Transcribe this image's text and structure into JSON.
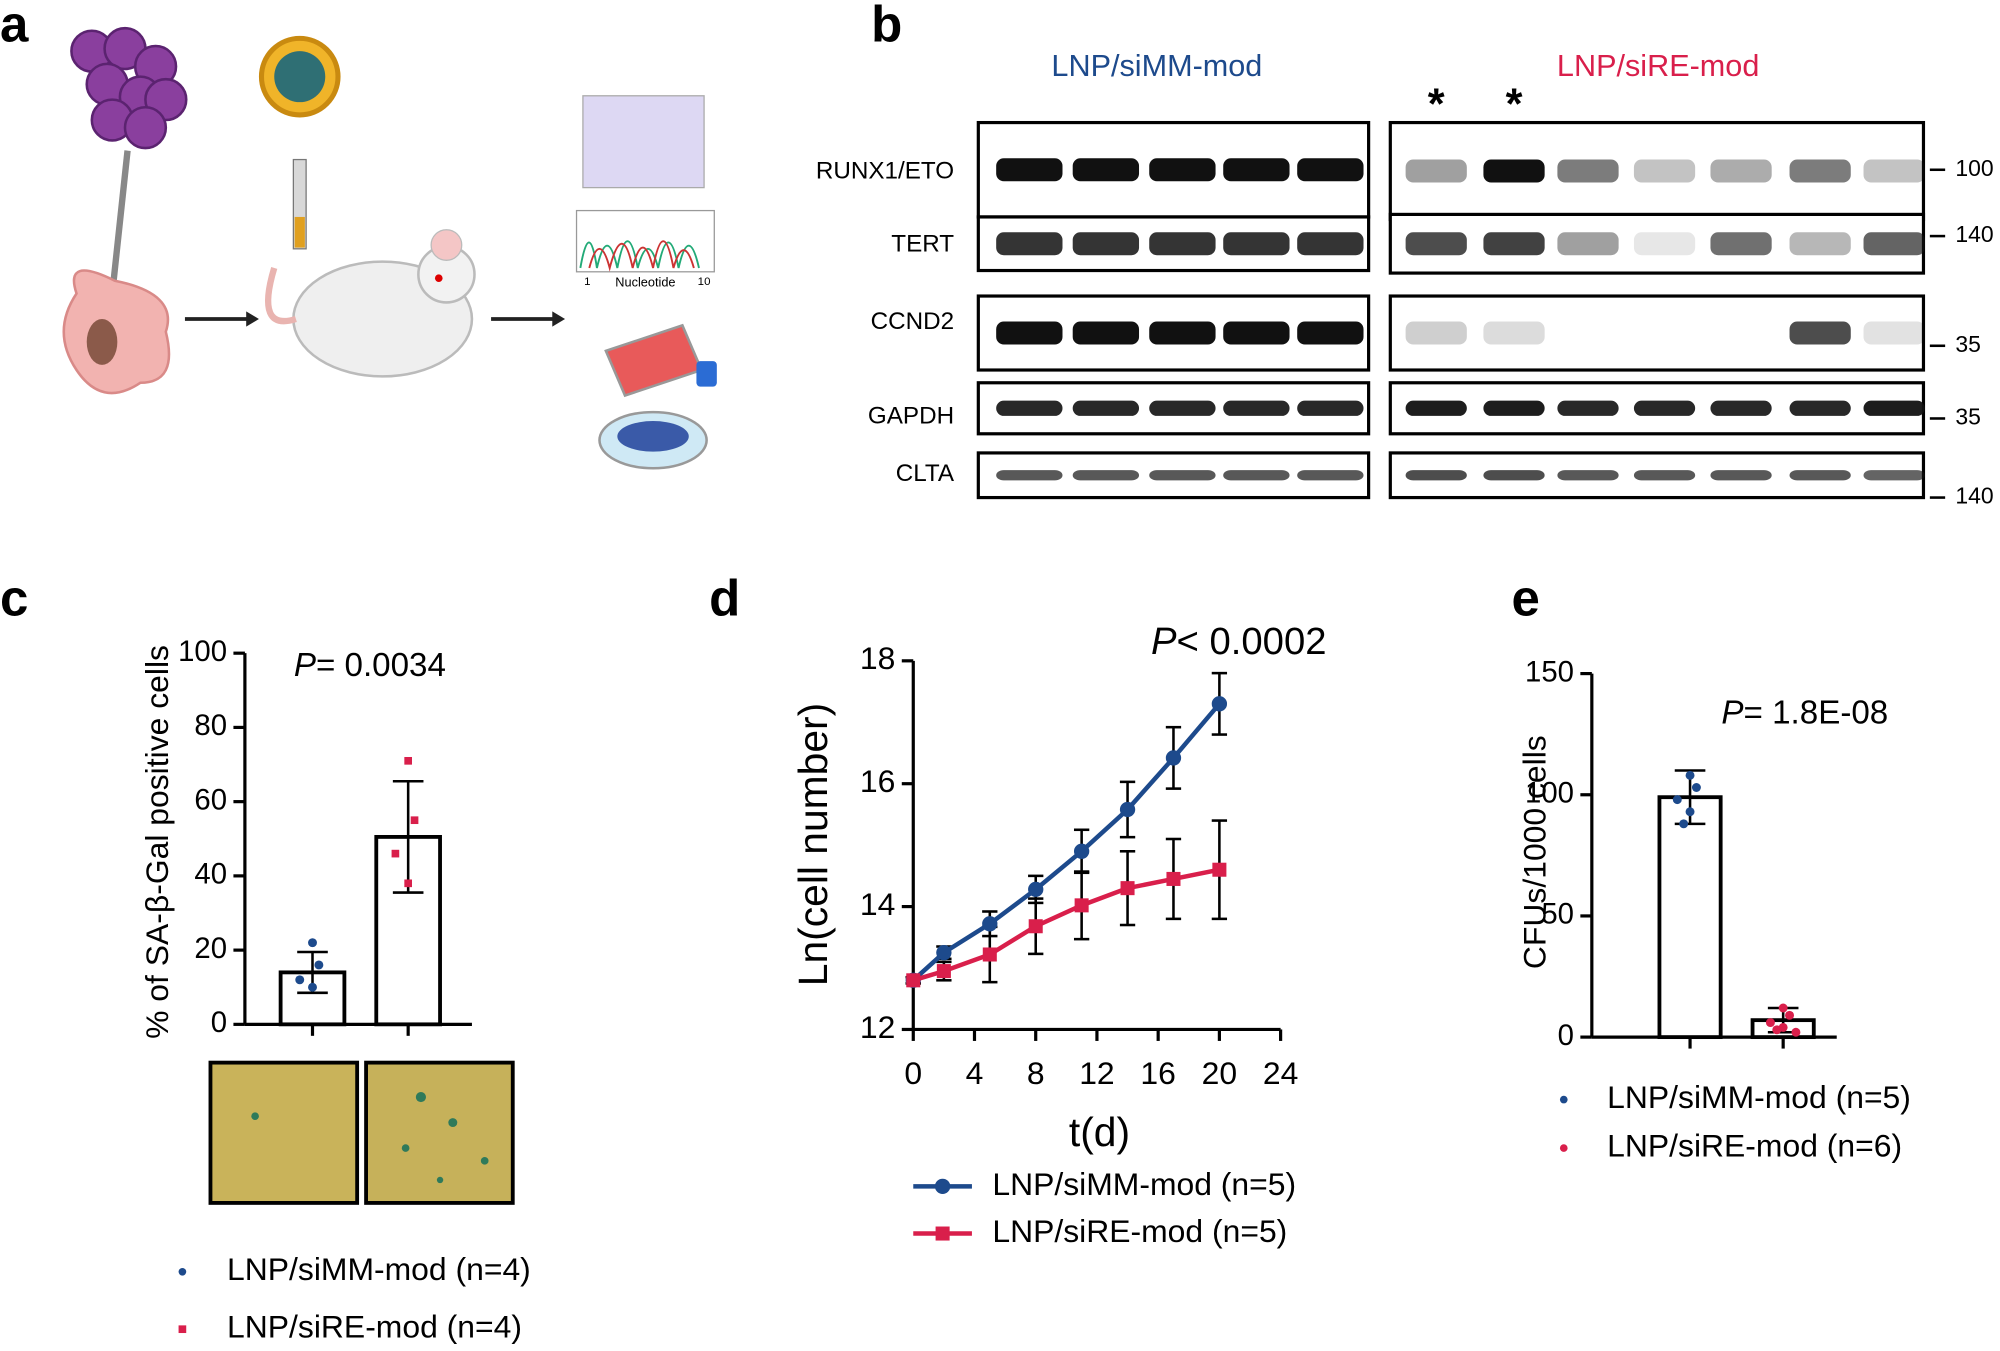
{
  "panels": [
    "a",
    "b",
    "c",
    "d",
    "e"
  ],
  "illustration": {
    "chromatogram_axis_label": "Nucleotide",
    "chromatogram_start": "1",
    "chromatogram_end": "10"
  },
  "western_blot": {
    "groups": [
      {
        "name": "LNP/siMM-mod",
        "color": "#1d4a8c"
      },
      {
        "name": "LNP/siRE-mod",
        "color": "#d91f4b"
      }
    ],
    "markers": [
      "*",
      "*"
    ],
    "proteins": [
      "RUNX1/ETO",
      "TERT",
      "CCND2",
      "GAPDH",
      "CLTA"
    ],
    "molecular_weights": [
      100,
      140,
      35,
      35,
      140
    ]
  },
  "chart_data": [
    {
      "type": "bar",
      "annotation": {
        "italic": "P",
        "text": "= 0.0034"
      },
      "ylabel": "% of SA-β-Gal positive cells",
      "ylim": [
        0,
        100
      ],
      "yticks": [
        0,
        20,
        40,
        60,
        80,
        100
      ],
      "series": [
        {
          "name": "LNP/siMM-mod (n=4)",
          "color": "#1d4a8c",
          "marker": "circle",
          "values": [
            14
          ],
          "errors": [
            5.5
          ],
          "points": [
            22,
            16,
            12,
            10
          ]
        },
        {
          "name": "LNP/siRE-mod (n=4)",
          "color": "#d91f4b",
          "marker": "square",
          "values": [
            50.5
          ],
          "errors": [
            15
          ],
          "points": [
            71,
            55,
            46,
            38
          ]
        }
      ]
    },
    {
      "type": "line",
      "annotation": {
        "italic": "P",
        "text": "< 0.0002"
      },
      "xlabel": "t(d)",
      "ylabel": "Ln(cell number)",
      "x": [
        0,
        2,
        5,
        8,
        11,
        14,
        17,
        20
      ],
      "xlim": [
        0,
        24
      ],
      "xticks": [
        0,
        4,
        8,
        12,
        16,
        20,
        24
      ],
      "ylim": [
        12,
        18
      ],
      "yticks": [
        12,
        14,
        16,
        18
      ],
      "series": [
        {
          "name": "LNP/siMM-mod (n=5)",
          "color": "#1d4a8c",
          "marker": "circle",
          "values": [
            12.8,
            13.25,
            13.72,
            14.28,
            14.9,
            15.58,
            16.42,
            17.3
          ],
          "errors": [
            0.05,
            0.1,
            0.2,
            0.22,
            0.35,
            0.45,
            0.5,
            0.5
          ]
        },
        {
          "name": "LNP/siRE-mod (n=5)",
          "color": "#d91f4b",
          "marker": "square",
          "values": [
            12.8,
            12.95,
            13.22,
            13.68,
            14.02,
            14.3,
            14.45,
            14.6
          ],
          "errors": [
            0.05,
            0.15,
            0.45,
            0.45,
            0.55,
            0.6,
            0.65,
            0.8
          ]
        }
      ]
    },
    {
      "type": "bar",
      "annotation": {
        "italic": "P",
        "text": "= 1.8E-08"
      },
      "ylabel": "CFUs/1000 cells",
      "ylim": [
        0,
        150
      ],
      "yticks": [
        0,
        50,
        100,
        150
      ],
      "series": [
        {
          "name": "LNP/siMM-mod (n=5)",
          "color": "#1d4a8c",
          "marker": "circle",
          "values": [
            99
          ],
          "errors": [
            11
          ],
          "points": [
            108,
            103,
            98,
            93,
            88
          ]
        },
        {
          "name": "LNP/siRE-mod (n=6)",
          "color": "#d91f4b",
          "marker": "circle",
          "values": [
            7
          ],
          "errors": [
            5
          ],
          "points": [
            12,
            9,
            6,
            4,
            3,
            2
          ]
        }
      ]
    }
  ]
}
